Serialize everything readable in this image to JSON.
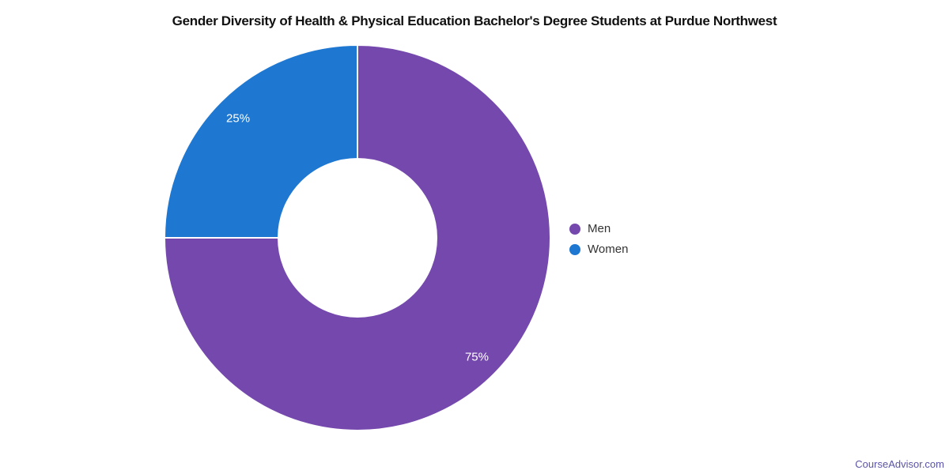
{
  "watermark": "CourseAdvisor.com",
  "chart_data": {
    "type": "pie",
    "subtype": "donut",
    "title": "Gender Diversity of Health & Physical Education Bachelor's Degree Students at Purdue Northwest",
    "categories": [
      "Men",
      "Women"
    ],
    "values": [
      75,
      25
    ],
    "value_labels": [
      "75%",
      "25%"
    ],
    "colors": [
      "#7448ad",
      "#1e78d2"
    ],
    "slice_divider_color": "#ffffff",
    "label_text_color": "#ffffff",
    "legend_text_color": "#333333",
    "title_color": "#111111",
    "watermark_color": "#5b54a6",
    "start_angle_deg": 0,
    "direction": "clockwise",
    "inner_radius_ratio": 0.41,
    "label_radius_ratio": 0.875,
    "legend_position": "right",
    "legend": {
      "items": [
        {
          "label": "Men",
          "color": "#7448ad"
        },
        {
          "label": "Women",
          "color": "#1e78d2"
        }
      ]
    }
  }
}
